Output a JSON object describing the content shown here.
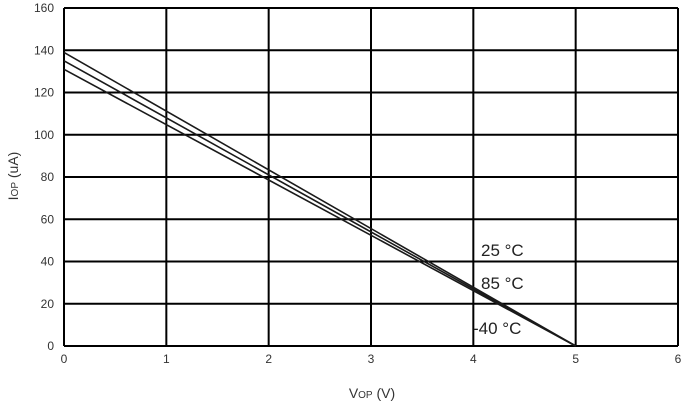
{
  "chart_data": {
    "type": "line",
    "xlabel": {
      "main": "V",
      "sub": "OP",
      "unit": " (V)"
    },
    "ylabel": {
      "main": "I",
      "sub": "OP",
      "unit": " (uA)"
    },
    "xlim": [
      0,
      6
    ],
    "ylim": [
      0,
      160
    ],
    "x_ticks": [
      0,
      1,
      2,
      3,
      4,
      5,
      6
    ],
    "y_ticks": [
      0,
      20,
      40,
      60,
      80,
      100,
      120,
      140,
      160
    ],
    "grid": true,
    "series": [
      {
        "name": "25 °C",
        "x": [
          0,
          5
        ],
        "y": [
          139,
          0
        ]
      },
      {
        "name": "85 °C",
        "x": [
          0,
          5
        ],
        "y": [
          135,
          0
        ]
      },
      {
        "name": "-40 °C",
        "x": [
          0,
          5
        ],
        "y": [
          131,
          0
        ]
      }
    ]
  }
}
